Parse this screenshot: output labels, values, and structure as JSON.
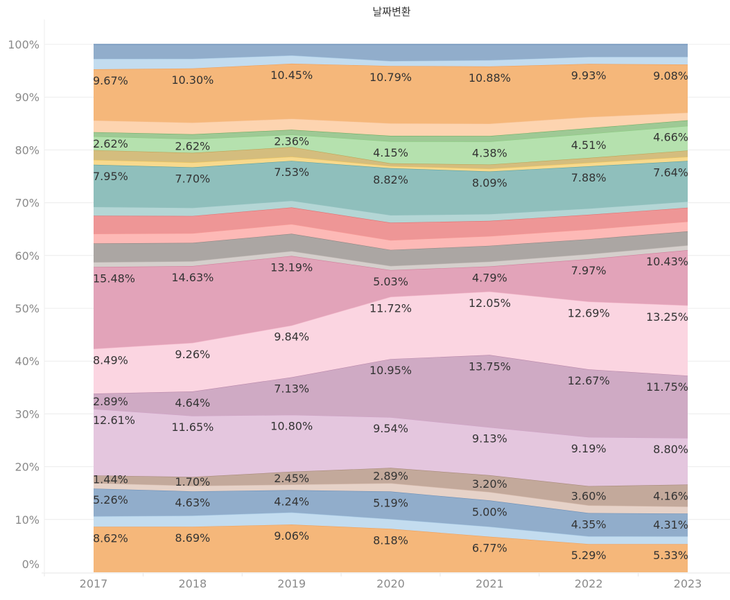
{
  "chart_data": {
    "type": "area",
    "stacked": true,
    "normalized_percent": true,
    "title": "날짜변환",
    "xlabel": "",
    "ylabel": "",
    "ylim": [
      0,
      100
    ],
    "y_ticks": [
      "0%",
      "10%",
      "20%",
      "30%",
      "40%",
      "50%",
      "60%",
      "70%",
      "80%",
      "90%",
      "100%"
    ],
    "x": [
      "2017",
      "2018",
      "2019",
      "2020",
      "2021",
      "2022",
      "2023"
    ],
    "grid": true,
    "legend": "none",
    "series": [
      {
        "name": "series-01",
        "color": "#f5b77a",
        "stroke": "#f0a05a",
        "values": [
          8.62,
          8.69,
          9.06,
          8.18,
          6.77,
          5.29,
          5.33
        ],
        "labeled": true
      },
      {
        "name": "series-02",
        "color": "#c3dcef",
        "stroke": "#a9cbe6",
        "values": [
          1.97,
          2.1,
          2.3,
          1.84,
          1.9,
          1.45,
          1.44
        ],
        "labeled": false
      },
      {
        "name": "series-03",
        "color": "#91adcb",
        "stroke": "#6b8fb8",
        "values": [
          5.26,
          4.63,
          4.24,
          5.19,
          5.0,
          4.35,
          4.31
        ],
        "labeled": true
      },
      {
        "name": "series-04",
        "color": "#e6d2c8",
        "stroke": "#d8bcae",
        "values": [
          1.05,
          1.05,
          1.05,
          1.57,
          1.6,
          1.45,
          1.31
        ],
        "labeled": false
      },
      {
        "name": "series-05",
        "color": "#c3a99b",
        "stroke": "#a88a7a",
        "values": [
          1.44,
          1.7,
          2.45,
          2.89,
          3.2,
          3.6,
          4.16
        ],
        "labeled": true
      },
      {
        "name": "series-06",
        "color": "#e4c6de",
        "stroke": "#cfa3c6",
        "values": [
          12.61,
          11.65,
          10.8,
          9.54,
          9.13,
          9.19,
          8.8
        ],
        "labeled": true
      },
      {
        "name": "series-07",
        "color": "#cfaac4",
        "stroke": "#b987aa",
        "values": [
          2.89,
          4.64,
          7.13,
          10.95,
          13.75,
          12.67,
          11.75
        ],
        "labeled": true
      },
      {
        "name": "series-08",
        "color": "#fbd5e1",
        "stroke": "#f3b6c9",
        "values": [
          8.49,
          9.26,
          9.84,
          11.72,
          12.05,
          12.69,
          13.25
        ],
        "labeled": true
      },
      {
        "name": "series-09",
        "color": "#e2a3b9",
        "stroke": "#d07f9c",
        "values": [
          15.48,
          14.63,
          13.19,
          5.03,
          4.79,
          7.97,
          10.43
        ],
        "labeled": true
      },
      {
        "name": "series-10",
        "color": "#d5cfcc",
        "stroke": "#bdb5b1",
        "values": [
          0.92,
          0.92,
          0.92,
          0.79,
          0.92,
          0.92,
          0.92
        ],
        "labeled": false
      },
      {
        "name": "series-11",
        "color": "#aba6a3",
        "stroke": "#8e8784",
        "values": [
          3.54,
          3.5,
          3.3,
          3.02,
          3.0,
          2.8,
          2.62
        ],
        "labeled": false
      },
      {
        "name": "series-12",
        "color": "#fdb9b6",
        "stroke": "#f79a96",
        "values": [
          1.84,
          1.84,
          1.84,
          1.84,
          1.84,
          1.84,
          1.84
        ],
        "labeled": false
      },
      {
        "name": "series-13",
        "color": "#ee9696",
        "stroke": "#e36f6f",
        "values": [
          3.41,
          3.28,
          3.15,
          3.28,
          2.9,
          2.75,
          2.62
        ],
        "labeled": false
      },
      {
        "name": "series-14",
        "color": "#b4d6d5",
        "stroke": "#93c2c0",
        "values": [
          1.71,
          1.57,
          1.31,
          1.44,
          1.31,
          1.18,
          1.18
        ],
        "labeled": false
      },
      {
        "name": "series-15",
        "color": "#8fbfbc",
        "stroke": "#5fa3a0",
        "values": [
          7.95,
          7.7,
          7.53,
          8.82,
          8.09,
          7.88,
          7.64
        ],
        "labeled": true
      },
      {
        "name": "series-16",
        "color": "#f7d98d",
        "stroke": "#eec65e",
        "values": [
          0.92,
          0.92,
          0.79,
          0.39,
          0.52,
          0.66,
          0.79
        ],
        "labeled": false
      },
      {
        "name": "series-17",
        "color": "#d4bd7e",
        "stroke": "#bea356",
        "values": [
          1.84,
          1.84,
          1.84,
          0.52,
          0.79,
          0.92,
          1.18
        ],
        "labeled": false
      },
      {
        "name": "series-18",
        "color": "#b5e1ae",
        "stroke": "#8ccc82",
        "values": [
          2.62,
          2.62,
          2.36,
          4.15,
          4.38,
          4.51,
          4.66
        ],
        "labeled": true
      },
      {
        "name": "series-19",
        "color": "#9ec995",
        "stroke": "#6fae64",
        "values": [
          0.79,
          0.92,
          0.92,
          1.05,
          1.05,
          1.05,
          1.05
        ],
        "labeled": false
      },
      {
        "name": "series-20",
        "color": "#fdd4b0",
        "stroke": "#f8bf8d",
        "values": [
          2.23,
          2.23,
          2.1,
          2.36,
          2.36,
          2.1,
          1.44
        ],
        "labeled": false
      },
      {
        "name": "series-21",
        "color": "#f5b77a",
        "stroke": "#f0a05a",
        "values": [
          9.67,
          10.3,
          10.45,
          10.79,
          10.88,
          9.93,
          9.08
        ],
        "labeled": true
      },
      {
        "name": "series-22",
        "color": "#c3dcef",
        "stroke": "#a9cbe6",
        "values": [
          1.97,
          1.84,
          1.57,
          0.92,
          1.18,
          1.31,
          1.44
        ],
        "labeled": false
      },
      {
        "name": "series-23",
        "color": "#91adcb",
        "stroke": "#6b8fb8",
        "values": [
          2.76,
          2.76,
          2.1,
          3.15,
          3.02,
          2.36,
          2.36
        ],
        "labeled": false
      }
    ]
  }
}
